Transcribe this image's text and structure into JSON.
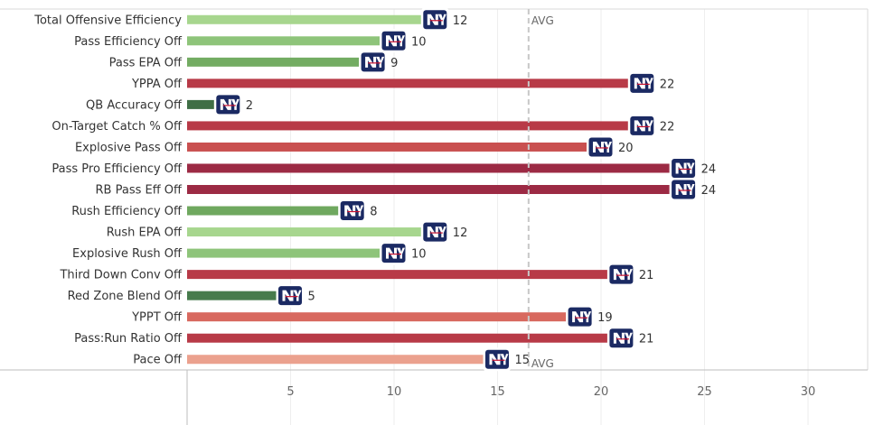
{
  "chart_data": {
    "type": "bar",
    "orientation": "horizontal",
    "categories": [
      "Total Offensive Efficiency",
      "Pass Efficiency Off",
      "Pass EPA Off",
      "YPPA Off",
      "QB Accuracy Off",
      "On-Target Catch % Off",
      "Explosive Pass Off",
      "Pass Pro Efficiency Off",
      "RB Pass Eff Off",
      "Rush Efficiency Off",
      "Rush EPA Off",
      "Explosive Rush Off",
      "Third Down Conv Off",
      "Red Zone Blend Off",
      "YPPT Off",
      "Pass:Run Ratio Off",
      "Pace Off"
    ],
    "values": [
      12,
      10,
      9,
      22,
      2,
      22,
      20,
      24,
      24,
      8,
      12,
      10,
      21,
      5,
      19,
      21,
      15
    ],
    "bar_colors": [
      "#a7d68e",
      "#8ec47a",
      "#73ac62",
      "#b83a47",
      "#3f6e45",
      "#b83a47",
      "#c95050",
      "#9c2a44",
      "#9c2a44",
      "#6fa85f",
      "#a7d68e",
      "#8ec47a",
      "#b83a47",
      "#477b4c",
      "#d8695f",
      "#b83a47",
      "#eba18e"
    ],
    "xlim": [
      0,
      32
    ],
    "x_ticks": [
      5,
      10,
      15,
      20,
      25,
      30
    ],
    "reference_line": {
      "value": 16.5,
      "label": "AVG"
    },
    "marker_icon": "ny-giants-logo",
    "grid": true
  }
}
